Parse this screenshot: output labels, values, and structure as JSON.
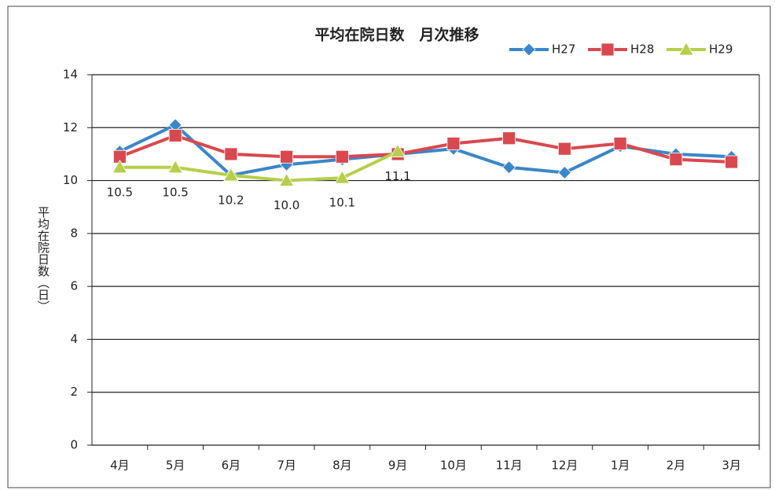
{
  "chart_data": {
    "type": "line",
    "title": "平均在院日数　月次推移",
    "y_label": "平均在院日数（日）",
    "categories": [
      "4月",
      "5月",
      "6月",
      "7月",
      "8月",
      "9月",
      "10月",
      "11月",
      "12月",
      "1月",
      "2月",
      "3月"
    ],
    "series": [
      {
        "name": "H27",
        "color": "#3a86c8",
        "marker": "diamond",
        "values": [
          11.1,
          12.1,
          10.2,
          10.6,
          10.8,
          11.0,
          11.2,
          10.5,
          10.3,
          11.3,
          11.0,
          10.9
        ]
      },
      {
        "name": "H28",
        "color": "#d9484f",
        "marker": "square",
        "values": [
          10.9,
          11.7,
          11.0,
          10.9,
          10.9,
          11.0,
          11.4,
          11.6,
          11.2,
          11.4,
          10.8,
          10.7
        ]
      },
      {
        "name": "H29",
        "color": "#b5cf4a",
        "marker": "triangle",
        "values": [
          10.5,
          10.5,
          10.2,
          10.0,
          10.1,
          11.1,
          null,
          null,
          null,
          null,
          null,
          null
        ],
        "value_labels": [
          "10.5",
          "10.5",
          "10.2",
          "10.0",
          "10.1",
          "11.1",
          null,
          null,
          null,
          null,
          null,
          null
        ]
      }
    ],
    "ylim": [
      0,
      14
    ],
    "yticks": [
      0,
      2,
      4,
      6,
      8,
      10,
      12,
      14
    ],
    "grid": true,
    "legend": "top-right"
  }
}
